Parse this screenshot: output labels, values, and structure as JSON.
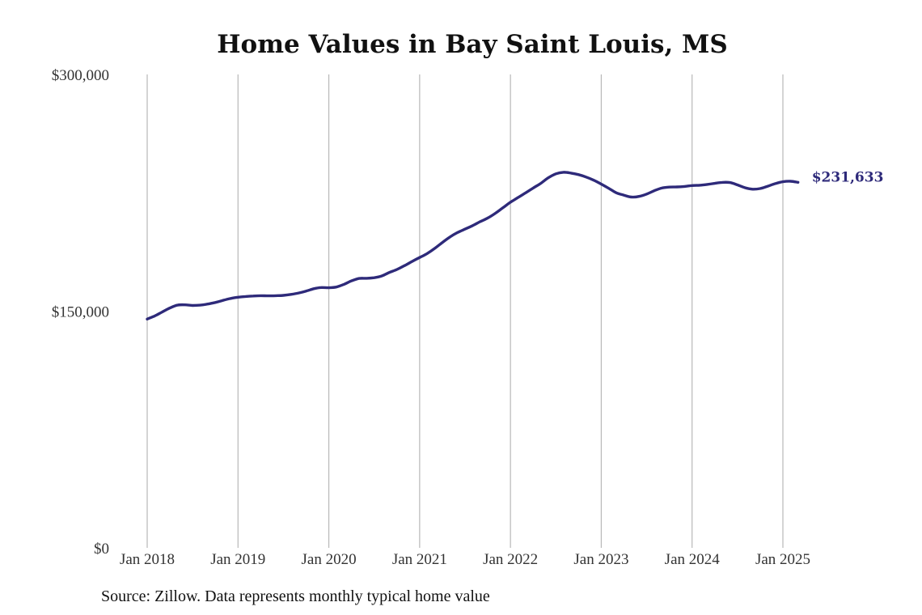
{
  "chart_data": {
    "type": "line",
    "title": "Home Values in Bay Saint Louis, MS",
    "xlabel": "",
    "ylabel": "",
    "x_tick_labels": [
      "Jan 2018",
      "Jan 2019",
      "Jan 2020",
      "Jan 2021",
      "Jan 2022",
      "Jan 2023",
      "Jan 2024",
      "Jan 2025"
    ],
    "y_tick_labels": [
      "$300,000",
      "$150,000",
      "$0"
    ],
    "ylim": [
      0,
      300000
    ],
    "grid": "vertical",
    "series": [
      {
        "color": "#2e2a7a",
        "end_label": "$231,633",
        "points": [
          [
            "2018-01",
            145000
          ],
          [
            "2018-02",
            147000
          ],
          [
            "2018-03",
            149500
          ],
          [
            "2018-04",
            152000
          ],
          [
            "2018-05",
            153800
          ],
          [
            "2018-06",
            154000
          ],
          [
            "2018-07",
            153600
          ],
          [
            "2018-08",
            153800
          ],
          [
            "2018-09",
            154500
          ],
          [
            "2018-10",
            155500
          ],
          [
            "2018-11",
            156800
          ],
          [
            "2018-12",
            158000
          ],
          [
            "2019-01",
            158800
          ],
          [
            "2019-02",
            159300
          ],
          [
            "2019-03",
            159600
          ],
          [
            "2019-04",
            159800
          ],
          [
            "2019-05",
            159700
          ],
          [
            "2019-06",
            159800
          ],
          [
            "2019-07",
            160000
          ],
          [
            "2019-08",
            160600
          ],
          [
            "2019-09",
            161500
          ],
          [
            "2019-10",
            162700
          ],
          [
            "2019-11",
            164200
          ],
          [
            "2019-12",
            165000
          ],
          [
            "2020-01",
            164800
          ],
          [
            "2020-02",
            165300
          ],
          [
            "2020-03",
            167000
          ],
          [
            "2020-04",
            169200
          ],
          [
            "2020-05",
            170700
          ],
          [
            "2020-06",
            170800
          ],
          [
            "2020-07",
            171200
          ],
          [
            "2020-08",
            172300
          ],
          [
            "2020-09",
            174500
          ],
          [
            "2020-10",
            176400
          ],
          [
            "2020-11",
            178800
          ],
          [
            "2020-12",
            181500
          ],
          [
            "2021-01",
            184000
          ],
          [
            "2021-02",
            186500
          ],
          [
            "2021-03",
            189800
          ],
          [
            "2021-04",
            193500
          ],
          [
            "2021-05",
            197000
          ],
          [
            "2021-06",
            199800
          ],
          [
            "2021-07",
            202000
          ],
          [
            "2021-08",
            204200
          ],
          [
            "2021-09",
            206700
          ],
          [
            "2021-10",
            209000
          ],
          [
            "2021-11",
            212000
          ],
          [
            "2021-12",
            215500
          ],
          [
            "2022-01",
            219000
          ],
          [
            "2022-02",
            222000
          ],
          [
            "2022-03",
            225000
          ],
          [
            "2022-04",
            228000
          ],
          [
            "2022-05",
            231000
          ],
          [
            "2022-06",
            234500
          ],
          [
            "2022-07",
            237000
          ],
          [
            "2022-08",
            238000
          ],
          [
            "2022-09",
            237500
          ],
          [
            "2022-10",
            236500
          ],
          [
            "2022-11",
            235000
          ],
          [
            "2022-12",
            233000
          ],
          [
            "2023-01",
            230500
          ],
          [
            "2023-02",
            227800
          ],
          [
            "2023-03",
            225000
          ],
          [
            "2023-04",
            223500
          ],
          [
            "2023-05",
            222300
          ],
          [
            "2023-06",
            222700
          ],
          [
            "2023-07",
            224200
          ],
          [
            "2023-08",
            226300
          ],
          [
            "2023-09",
            228000
          ],
          [
            "2023-10",
            228600
          ],
          [
            "2023-11",
            228700
          ],
          [
            "2023-12",
            229000
          ],
          [
            "2024-01",
            229600
          ],
          [
            "2024-02",
            229800
          ],
          [
            "2024-03",
            230300
          ],
          [
            "2024-04",
            231000
          ],
          [
            "2024-05",
            231600
          ],
          [
            "2024-06",
            231500
          ],
          [
            "2024-07",
            230000
          ],
          [
            "2024-08",
            228200
          ],
          [
            "2024-09",
            227300
          ],
          [
            "2024-10",
            227700
          ],
          [
            "2024-11",
            229200
          ],
          [
            "2024-12",
            230800
          ],
          [
            "2025-01",
            232000
          ],
          [
            "2025-02",
            232300
          ],
          [
            "2025-03",
            231633
          ]
        ]
      }
    ]
  },
  "source_note": "Source: Zillow. Data represents monthly typical home value"
}
